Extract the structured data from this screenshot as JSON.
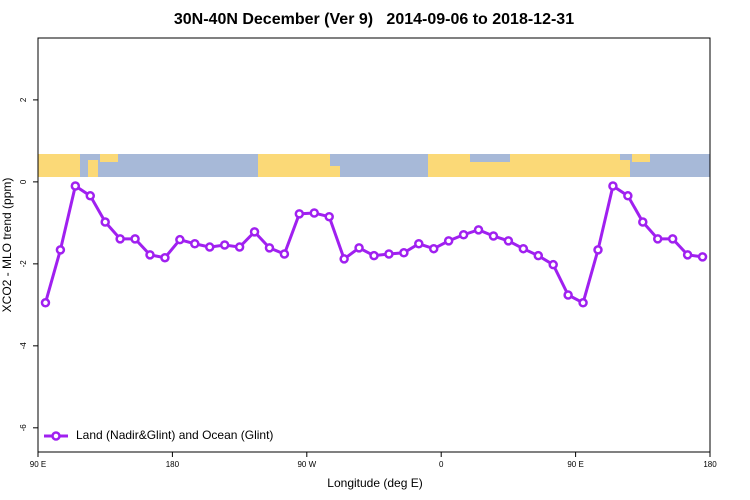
{
  "chart_data": {
    "type": "line",
    "title": "30N-40N December (Ver 9)   2014-09-06 to 2018-12-31",
    "x_label": "Longitude (deg E)",
    "y_label": "XCO2 - MLO trend (ppm)",
    "x": [
      95,
      105,
      115,
      125,
      135,
      145,
      155,
      165,
      175,
      185,
      195,
      205,
      215,
      225,
      235,
      245,
      255,
      265,
      275,
      285,
      295,
      305,
      315,
      325,
      335,
      345,
      355,
      365,
      375,
      385,
      395,
      405,
      415,
      425,
      435,
      445,
      455,
      465,
      475,
      485,
      495,
      505,
      515,
      525,
      535
    ],
    "series": [
      {
        "name": "Land (Nadir&Glint) and Ocean (Glint)",
        "color": "#a020f0",
        "values": [
          -2.95,
          -1.66,
          -0.1,
          -0.34,
          -0.98,
          -1.39,
          -1.39,
          -1.78,
          -1.85,
          -1.41,
          -1.51,
          -1.59,
          -1.54,
          -1.59,
          -1.22,
          -1.61,
          -1.76,
          -0.78,
          -0.76,
          -0.85,
          -1.88,
          -1.61,
          -1.8,
          -1.76,
          -1.73,
          -1.51,
          -1.63,
          -1.44,
          -1.29,
          -1.17,
          -1.32,
          -1.44,
          -1.63,
          -1.8,
          -2.02,
          -2.76,
          -2.95,
          -1.66,
          -0.1,
          -0.34,
          -0.98,
          -1.39,
          -1.39,
          -1.78,
          -1.83
        ]
      }
    ],
    "xlim": [
      90,
      540
    ],
    "xticks": [
      {
        "value": 90,
        "label": "90 E"
      },
      180,
      {
        "value": 270,
        "label": "90 W"
      },
      {
        "value": 360,
        "label": "0"
      },
      {
        "value": 450,
        "label": "90 E"
      },
      {
        "value": 540,
        "label": "180"
      }
    ],
    "ylim": [
      -6.59,
      3.51
    ],
    "yticks": [
      2,
      0,
      -2,
      -4,
      -6
    ],
    "legend": "bottom-left"
  }
}
